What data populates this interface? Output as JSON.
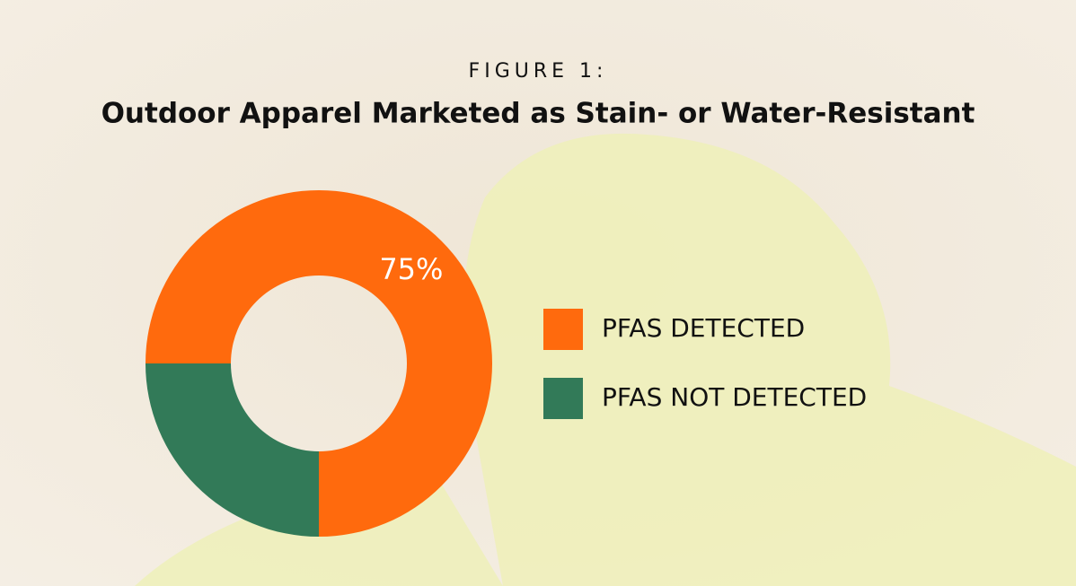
{
  "chart_data": {
    "type": "pie",
    "donut": true,
    "figure_label": "FIGURE 1:",
    "title": "Outdoor Apparel Marketed as Stain- or Water-Resistant",
    "categories": [
      "PFAS DETECTED",
      "PFAS NOT DETECTED"
    ],
    "values": [
      75,
      25
    ],
    "value_labels": [
      "75%",
      null
    ],
    "colors": [
      "#ff6a0d",
      "#327a58"
    ],
    "legend": "right"
  }
}
